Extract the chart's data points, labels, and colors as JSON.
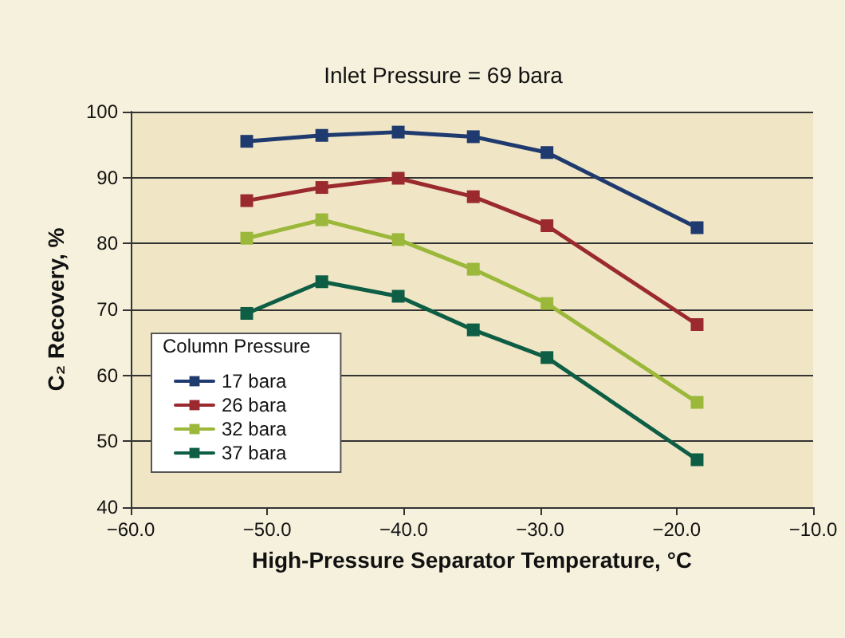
{
  "chart_data": {
    "type": "line",
    "title": "Inlet Pressure = 69 bara",
    "xlabel": "High-Pressure Separator Temperature, °C",
    "ylabel": "C₂ Recovery, %",
    "legend_title": "Column Pressure",
    "legend": "bottom left",
    "grid": "y",
    "marker": "square",
    "line_style": "solid",
    "x": [
      -51.5,
      -46.0,
      -40.4,
      -34.9,
      -29.5,
      -18.5
    ],
    "xlim": [
      -60,
      -10
    ],
    "xticks": [
      {
        "value": -60,
        "label": "−60.0"
      },
      {
        "value": -50,
        "label": "−50.0"
      },
      {
        "value": -40,
        "label": "−40.0"
      },
      {
        "value": -30,
        "label": "−30.0"
      },
      {
        "value": -20,
        "label": "−20.0"
      },
      {
        "value": -10,
        "label": "−10.0"
      }
    ],
    "ylim": [
      40,
      100
    ],
    "yticks": [
      40,
      50,
      60,
      70,
      80,
      90,
      100
    ],
    "series": [
      {
        "name": "17 bara",
        "color": "#1f3a6e",
        "values": [
          95.5,
          96.4,
          96.9,
          96.2,
          93.8,
          82.4
        ]
      },
      {
        "name": "26 bara",
        "color": "#9b2a2e",
        "values": [
          86.5,
          88.5,
          89.9,
          87.1,
          82.7,
          67.7
        ]
      },
      {
        "name": "32 bara",
        "color": "#9bb83a",
        "values": [
          80.8,
          83.6,
          80.6,
          76.1,
          70.9,
          55.9
        ]
      },
      {
        "name": "37 bara",
        "color": "#0d5e45",
        "values": [
          69.4,
          74.2,
          72.0,
          66.9,
          62.7,
          47.2
        ]
      }
    ]
  }
}
